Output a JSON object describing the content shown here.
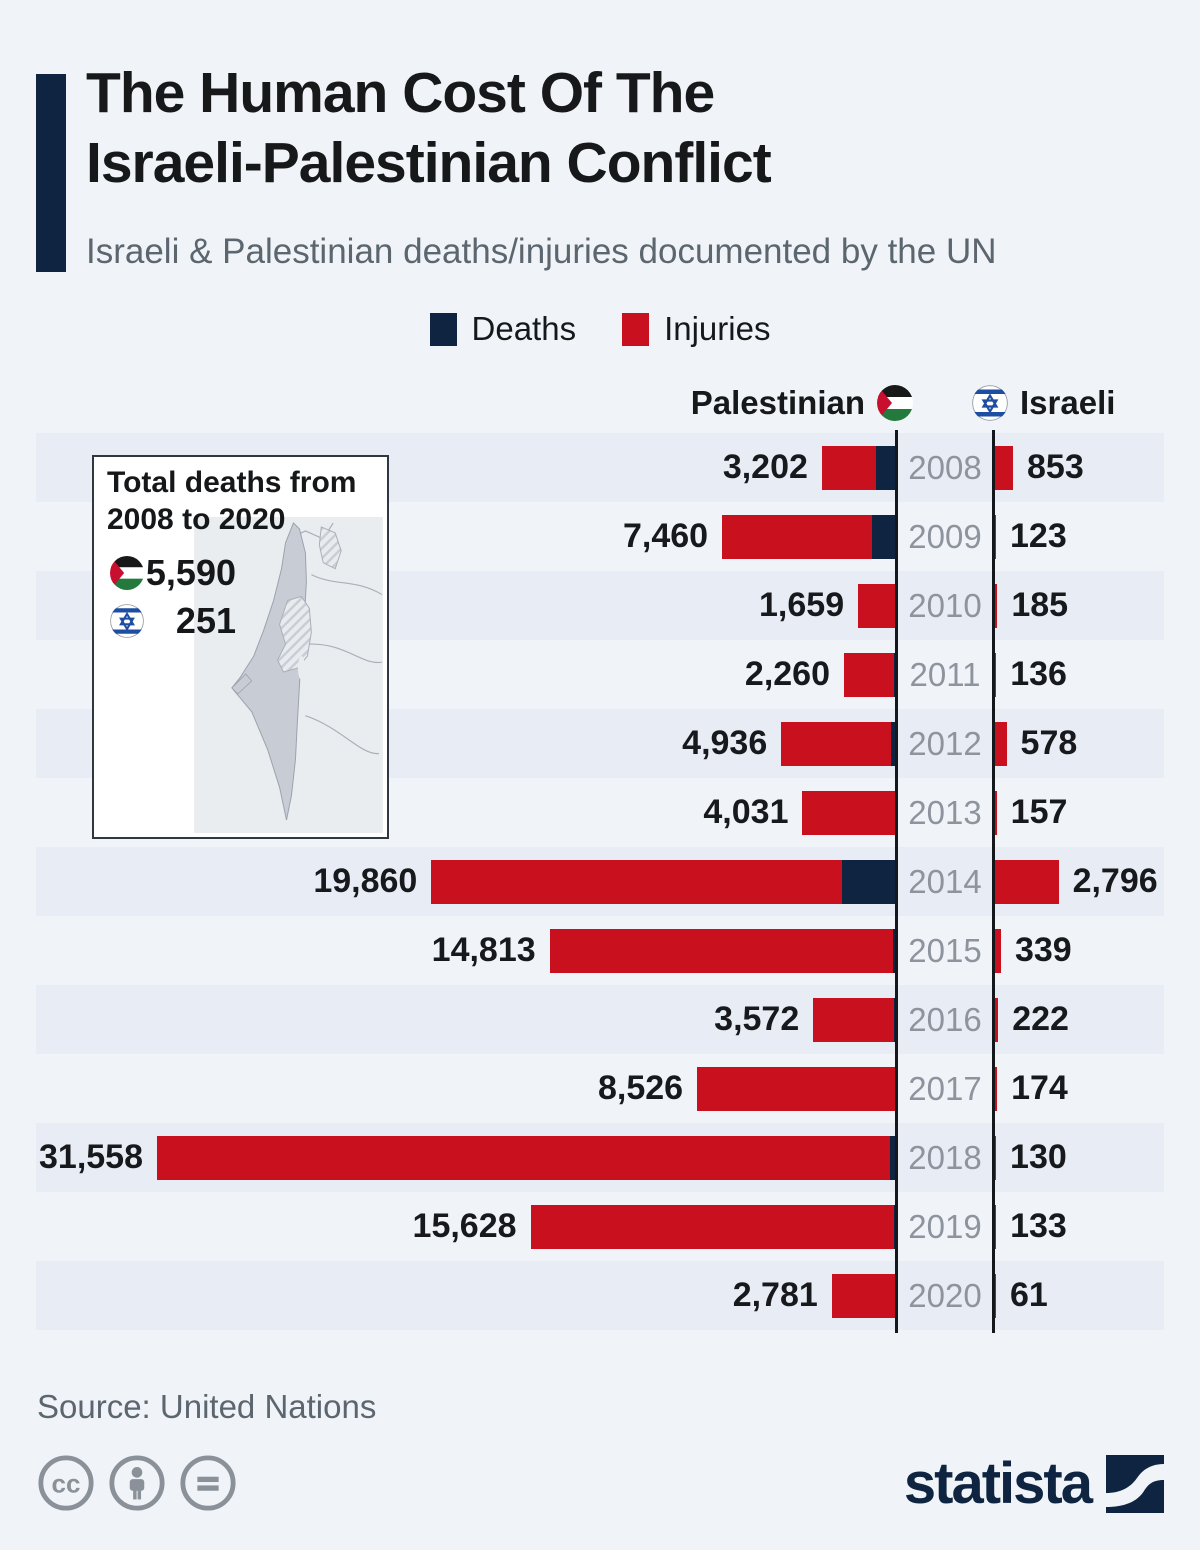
{
  "header": {
    "title": "The Human Cost Of The\nIsraeli-Palestinian Conflict",
    "subtitle": "Israeli & Palestinian deaths/injuries documented by the UN"
  },
  "legend": {
    "deaths": "Deaths",
    "injuries": "Injuries"
  },
  "column_headers": {
    "palestinian": "Palestinian",
    "israeli": "Israeli"
  },
  "inset": {
    "title": "Total deaths from\n2008 to 2020",
    "palestinian_total": "5,590",
    "israeli_total": "251"
  },
  "footer": {
    "source": "Source: United Nations",
    "brand": "statista",
    "license_icons": [
      "cc-icon",
      "cc-by-person-icon",
      "cc-nd-equals-icon"
    ]
  },
  "colors": {
    "bg": "#f0f4f8",
    "stripe": "#e8edf5",
    "red": "#c8101e",
    "navy": "#0e2440",
    "navy-dark": "#0e2440",
    "axis-line": "#14171c",
    "year-gray": "#8e949d",
    "text-gray": "#5c666f"
  },
  "chart_data": {
    "type": "bar",
    "variant": "diverging-horizontal, stacked (deaths + injuries)",
    "title": "Israeli & Palestinian deaths/injuries documented by the UN",
    "categories": [
      "2008",
      "2009",
      "2010",
      "2011",
      "2012",
      "2013",
      "2014",
      "2015",
      "2016",
      "2017",
      "2018",
      "2019",
      "2020"
    ],
    "axis_max": 31558,
    "grid": false,
    "legend_position": "top-center",
    "legend_entries": [
      "Deaths",
      "Injuries"
    ],
    "series": [
      {
        "name": "Palestinian total (deaths + injuries)",
        "side": "left",
        "labels": [
          "3,202",
          "7,460",
          "1,659",
          "2,260",
          "4,936",
          "4,031",
          "19,860",
          "14,813",
          "3,572",
          "8,526",
          "31,558",
          "15,628",
          "2,781"
        ],
        "values": [
          3202,
          7460,
          1659,
          2260,
          4936,
          4031,
          19860,
          14813,
          3572,
          8526,
          31558,
          15628,
          2781
        ]
      },
      {
        "name": "Palestinian deaths (navy segment, estimated from bar)",
        "side": "left",
        "values": [
          887,
          1066,
          87,
          118,
          255,
          39,
          2329,
          174,
          109,
          78,
          299,
          135,
          30
        ]
      },
      {
        "name": "Israeli total (deaths + injuries)",
        "side": "right",
        "labels": [
          "853",
          "123",
          "185",
          "136",
          "578",
          "157",
          "2,796",
          "339",
          "222",
          "174",
          "130",
          "133",
          "61"
        ],
        "values": [
          853,
          123,
          185,
          136,
          578,
          157,
          2796,
          339,
          222,
          174,
          130,
          133,
          61
        ]
      }
    ],
    "totals_inset": {
      "palestinian_deaths_2008_2020": 5590,
      "israeli_deaths_2008_2020": 251
    }
  }
}
